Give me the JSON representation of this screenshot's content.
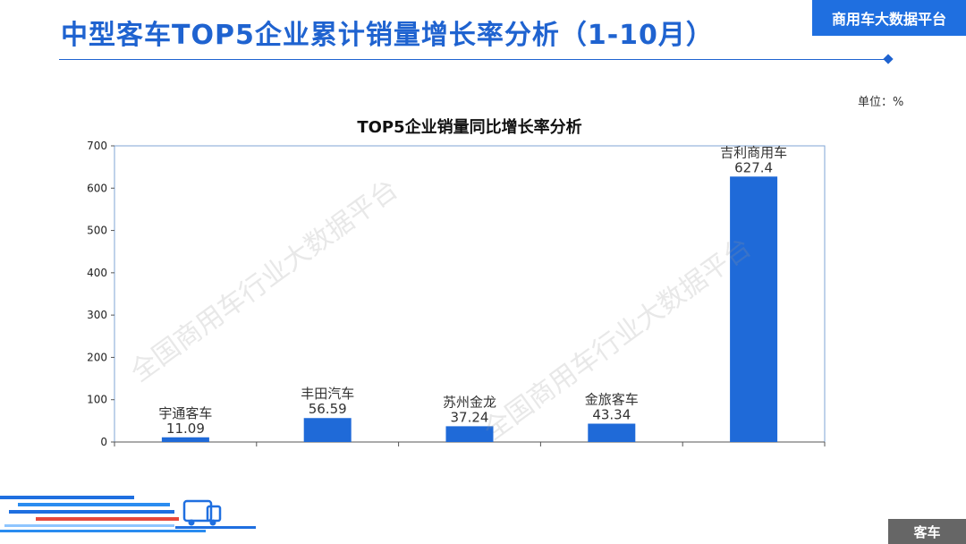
{
  "header": {
    "title": "中型客车TOP5企业累计销量增长率分析（1-10月）",
    "badge": "商用车大数据平台"
  },
  "unit_label": "单位：%",
  "watermark": "全国商用车行业大数据平台",
  "footer": {
    "tag": "客车"
  },
  "colors": {
    "accent": "#1f63d0",
    "bar": "#1f6ad8",
    "badge": "#1f6fe0",
    "footer": "#666666"
  },
  "chart_data": {
    "type": "bar",
    "title": "TOP5企业销量同比增长率分析",
    "categories": [
      "宇通客车",
      "丰田汽车",
      "苏州金龙",
      "金旅客车",
      "吉利商用车"
    ],
    "values": [
      11.09,
      56.59,
      37.24,
      43.34,
      627.4
    ],
    "value_labels": [
      "11.09",
      "56.59",
      "37.24",
      "43.34",
      "627.4"
    ],
    "ylim": [
      0,
      700
    ],
    "yticks": [
      0,
      100,
      200,
      300,
      400,
      500,
      600,
      700
    ],
    "xlabel": "",
    "ylabel": "",
    "grid": false,
    "legend": "none"
  }
}
